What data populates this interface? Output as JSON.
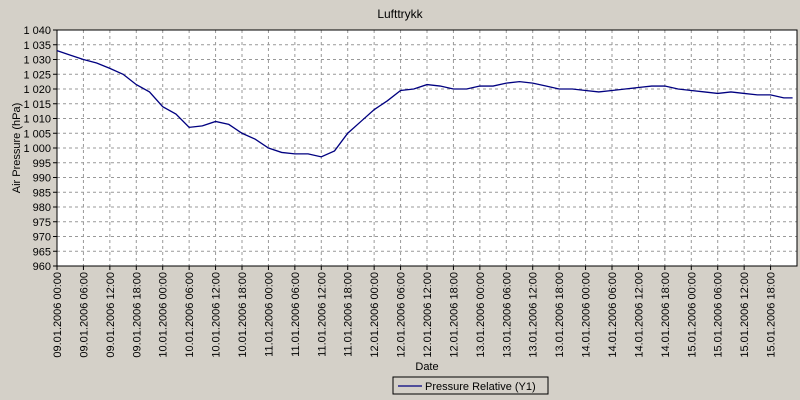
{
  "chart_data": {
    "type": "line",
    "title": "Lufttrykk",
    "x_label": "Date",
    "y_label": "Air Pressure (hPa)",
    "x": [
      "09.01.2006 00:00",
      "09.01.2006 03:00",
      "09.01.2006 06:00",
      "09.01.2006 09:00",
      "09.01.2006 12:00",
      "09.01.2006 15:00",
      "09.01.2006 18:00",
      "09.01.2006 21:00",
      "10.01.2006 00:00",
      "10.01.2006 03:00",
      "10.01.2006 06:00",
      "10.01.2006 09:00",
      "10.01.2006 12:00",
      "10.01.2006 15:00",
      "10.01.2006 18:00",
      "10.01.2006 21:00",
      "11.01.2006 00:00",
      "11.01.2006 03:00",
      "11.01.2006 06:00",
      "11.01.2006 09:00",
      "11.01.2006 12:00",
      "11.01.2006 15:00",
      "11.01.2006 18:00",
      "11.01.2006 21:00",
      "12.01.2006 00:00",
      "12.01.2006 03:00",
      "12.01.2006 06:00",
      "12.01.2006 09:00",
      "12.01.2006 12:00",
      "12.01.2006 15:00",
      "12.01.2006 18:00",
      "12.01.2006 21:00",
      "13.01.2006 00:00",
      "13.01.2006 03:00",
      "13.01.2006 06:00",
      "13.01.2006 09:00",
      "13.01.2006 12:00",
      "13.01.2006 15:00",
      "13.01.2006 18:00",
      "13.01.2006 21:00",
      "14.01.2006 00:00",
      "14.01.2006 03:00",
      "14.01.2006 06:00",
      "14.01.2006 09:00",
      "14.01.2006 12:00",
      "14.01.2006 15:00",
      "14.01.2006 18:00",
      "14.01.2006 21:00",
      "15.01.2006 00:00",
      "15.01.2006 03:00",
      "15.01.2006 06:00",
      "15.01.2006 09:00",
      "15.01.2006 12:00",
      "15.01.2006 15:00",
      "15.01.2006 18:00",
      "15.01.2006 21:00",
      "15.01.2006 23:00"
    ],
    "series": [
      {
        "name": "Pressure Relative (Y1)",
        "color": "#000080",
        "values": [
          1033,
          1031.5,
          1030,
          1028.8,
          1027,
          1025,
          1021.5,
          1019,
          1014,
          1011.5,
          1007,
          1007.5,
          1009,
          1008,
          1005,
          1003,
          1000,
          998.5,
          998,
          998,
          997,
          999,
          1005,
          1009,
          1013,
          1016,
          1019.5,
          1020,
          1021.5,
          1021,
          1020,
          1020,
          1021,
          1021,
          1022,
          1022.5,
          1022,
          1021,
          1020,
          1020,
          1019.5,
          1019,
          1019.5,
          1020,
          1020.5,
          1021,
          1021,
          1020,
          1019.5,
          1019,
          1018.5,
          1019,
          1018.5,
          1018,
          1018,
          1017,
          1017
        ]
      }
    ],
    "xlim": [
      "09.01.2006 00:00",
      "16.01.2006 00:00"
    ],
    "xticks": [
      "09.01.2006 00:00",
      "09.01.2006 06:00",
      "09.01.2006 12:00",
      "09.01.2006 18:00",
      "10.01.2006 00:00",
      "10.01.2006 06:00",
      "10.01.2006 12:00",
      "10.01.2006 18:00",
      "11.01.2006 00:00",
      "11.01.2006 06:00",
      "11.01.2006 12:00",
      "11.01.2006 18:00",
      "12.01.2006 00:00",
      "12.01.2006 06:00",
      "12.01.2006 12:00",
      "12.01.2006 18:00",
      "13.01.2006 00:00",
      "13.01.2006 06:00",
      "13.01.2006 12:00",
      "13.01.2006 18:00",
      "14.01.2006 00:00",
      "14.01.2006 06:00",
      "14.01.2006 12:00",
      "14.01.2006 18:00",
      "15.01.2006 00:00",
      "15.01.2006 06:00",
      "15.01.2006 12:00",
      "15.01.2006 18:00"
    ],
    "ylim": [
      960,
      1040
    ],
    "yticks": [
      960,
      965,
      970,
      975,
      980,
      985,
      990,
      995,
      {
        "value": 1000,
        "label": "1 000"
      },
      {
        "value": 1005,
        "label": "1 005"
      },
      {
        "value": 1010,
        "label": "1 010"
      },
      {
        "value": 1015,
        "label": "1 015"
      },
      {
        "value": 1020,
        "label": "1 020"
      },
      {
        "value": 1025,
        "label": "1 025"
      },
      {
        "value": 1030,
        "label": "1 030"
      },
      {
        "value": 1035,
        "label": "1 035"
      },
      {
        "value": 1040,
        "label": "1 040"
      }
    ],
    "grid": true
  }
}
